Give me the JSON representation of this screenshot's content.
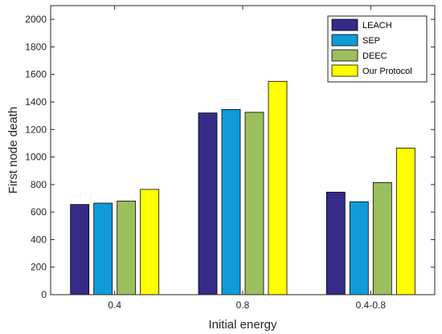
{
  "chart_data": {
    "type": "bar",
    "xlabel": "Initial energy",
    "ylabel": "First node death",
    "categories": [
      "0.4",
      "0.8",
      "0.4-0.8"
    ],
    "ylim": [
      0,
      2100
    ],
    "yticks": [
      0,
      200,
      400,
      600,
      800,
      1000,
      1200,
      1400,
      1600,
      1800,
      2000
    ],
    "grid": false,
    "legend_position": "top-right",
    "series": [
      {
        "name": "LEACH",
        "color": "#352a87",
        "values": [
          655,
          1320,
          745
        ]
      },
      {
        "name": "SEP",
        "color": "#0f9bd8",
        "values": [
          665,
          1345,
          675
        ]
      },
      {
        "name": "DEEC",
        "color": "#9cbf5e",
        "values": [
          680,
          1325,
          815
        ]
      },
      {
        "name": "Our Protocol",
        "color": "#ffff00",
        "values": [
          765,
          1550,
          1065
        ]
      }
    ]
  }
}
